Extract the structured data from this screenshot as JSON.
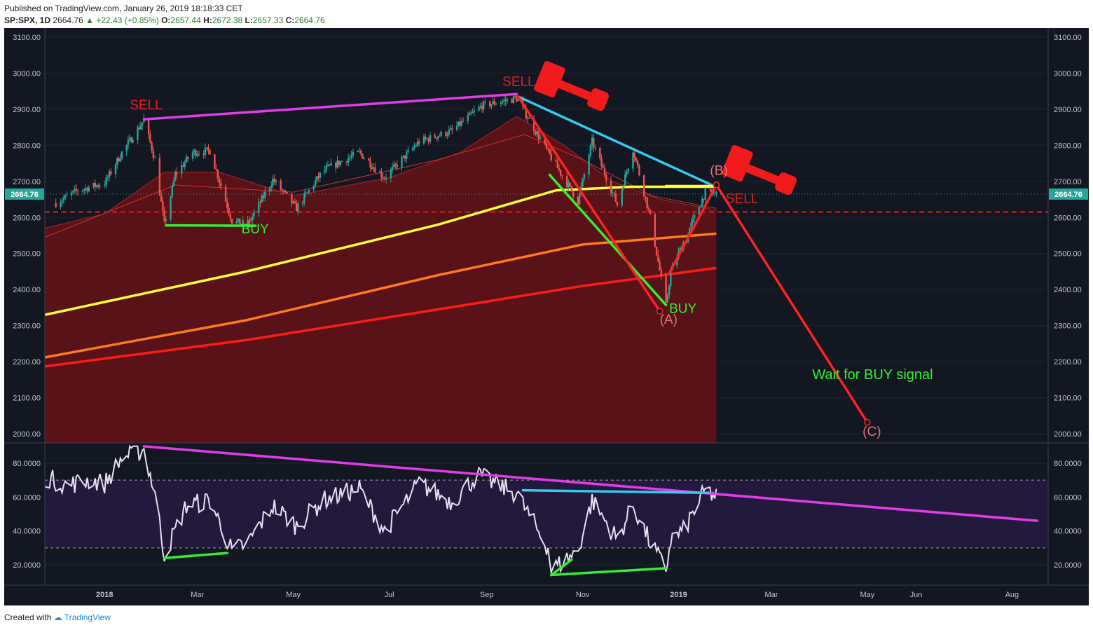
{
  "header": {
    "published": "Published on TradingView.com, January 26, 2019 18:18:33 CET",
    "symbol": "SP:SPX, 1D",
    "last": "2664.76",
    "change": "▲ +22.43 (+0.85%)",
    "o_label": "O:",
    "o": "2657.44",
    "h_label": "H:",
    "h": "2672.38",
    "l_label": "L:",
    "l": "2657.33",
    "c_label": "C:",
    "c": "2664.76"
  },
  "footer": {
    "created": "Created with",
    "brand": "TradingView"
  },
  "colors": {
    "background": "#131722",
    "ma_fill": "#5c1218",
    "ma200": "#ff1a1a",
    "ma_orange": "#ff7a1a",
    "ma_yellow": "#ffff33",
    "trend_magenta": "#e23ce8",
    "trend_green": "#33ee33",
    "trend_cyan": "#33ccee",
    "signal_red": "#ff2222",
    "candle_up": "#26a69a",
    "candle_down": "#ef5350",
    "rsi_line": "#e8e0f0",
    "rsi_band": "#23193d",
    "last_price_tag": "#26a69a"
  },
  "chart_data": [
    {
      "type": "candlestick",
      "panel": "price",
      "symbol": "SP:SPX",
      "interval": "1D",
      "last_price": 2664.76,
      "ylim": [
        1975,
        3125
      ],
      "yticks": [
        "2000.00",
        "2100.00",
        "2200.00",
        "2300.00",
        "2400.00",
        "2500.00",
        "2600.00",
        "2700.00",
        "2800.00",
        "2900.00",
        "3000.00",
        "3100.00"
      ],
      "xticks": [
        "2018",
        "Mar",
        "May",
        "Jul",
        "Sep",
        "Nov",
        "2019",
        "Mar",
        "May",
        "Jun",
        "Aug"
      ],
      "price_anchors": [
        {
          "date": "2017-12-01",
          "value": 2640
        },
        {
          "date": "2017-12-15",
          "value": 2675
        },
        {
          "date": "2018-01-01",
          "value": 2695
        },
        {
          "date": "2018-01-12",
          "value": 2780
        },
        {
          "date": "2018-01-26",
          "value": 2870
        },
        {
          "date": "2018-02-02",
          "value": 2760
        },
        {
          "date": "2018-02-08",
          "value": 2580
        },
        {
          "date": "2018-02-15",
          "value": 2720
        },
        {
          "date": "2018-02-26",
          "value": 2780
        },
        {
          "date": "2018-03-09",
          "value": 2785
        },
        {
          "date": "2018-03-23",
          "value": 2590
        },
        {
          "date": "2018-04-02",
          "value": 2580
        },
        {
          "date": "2018-04-18",
          "value": 2705
        },
        {
          "date": "2018-05-03",
          "value": 2625
        },
        {
          "date": "2018-05-20",
          "value": 2730
        },
        {
          "date": "2018-06-12",
          "value": 2780
        },
        {
          "date": "2018-06-28",
          "value": 2710
        },
        {
          "date": "2018-07-20",
          "value": 2810
        },
        {
          "date": "2018-08-10",
          "value": 2840
        },
        {
          "date": "2018-08-29",
          "value": 2910
        },
        {
          "date": "2018-09-20",
          "value": 2930
        },
        {
          "date": "2018-10-10",
          "value": 2780
        },
        {
          "date": "2018-10-29",
          "value": 2645
        },
        {
          "date": "2018-11-07",
          "value": 2810
        },
        {
          "date": "2018-11-23",
          "value": 2635
        },
        {
          "date": "2018-12-03",
          "value": 2790
        },
        {
          "date": "2018-12-14",
          "value": 2600
        },
        {
          "date": "2018-12-24",
          "value": 2355
        },
        {
          "date": "2018-12-27",
          "value": 2450
        },
        {
          "date": "2019-01-04",
          "value": 2530
        },
        {
          "date": "2019-01-18",
          "value": 2670
        },
        {
          "date": "2019-01-25",
          "value": 2665
        }
      ],
      "moving_averages": [
        {
          "color": "#ffff33",
          "points": [
            {
              "date": "2017-11-24",
              "value": 2330
            },
            {
              "date": "2018-04-01",
              "value": 2450
            },
            {
              "date": "2018-08-01",
              "value": 2580
            },
            {
              "date": "2018-10-15",
              "value": 2675
            },
            {
              "date": "2018-12-01",
              "value": 2685
            },
            {
              "date": "2019-01-25",
              "value": 2685
            }
          ]
        },
        {
          "color": "#ff7a1a",
          "points": [
            {
              "date": "2017-11-24",
              "value": 2212
            },
            {
              "date": "2018-04-01",
              "value": 2315
            },
            {
              "date": "2018-08-01",
              "value": 2440
            },
            {
              "date": "2018-11-01",
              "value": 2525
            },
            {
              "date": "2019-01-25",
              "value": 2555
            }
          ]
        },
        {
          "color": "#ff1a1a",
          "points": [
            {
              "date": "2017-11-24",
              "value": 2187
            },
            {
              "date": "2018-04-01",
              "value": 2260
            },
            {
              "date": "2018-08-01",
              "value": 2345
            },
            {
              "date": "2018-11-01",
              "value": 2410
            },
            {
              "date": "2019-01-25",
              "value": 2460
            }
          ]
        }
      ],
      "ma_envelope": [
        {
          "date": "2017-11-24",
          "value": 2570
        },
        {
          "date": "2018-01-01",
          "value": 2610
        },
        {
          "date": "2018-02-08",
          "value": 2725
        },
        {
          "date": "2018-03-15",
          "value": 2725
        },
        {
          "date": "2018-05-01",
          "value": 2660
        },
        {
          "date": "2018-07-01",
          "value": 2710
        },
        {
          "date": "2018-08-15",
          "value": 2780
        },
        {
          "date": "2018-09-20",
          "value": 2880
        },
        {
          "date": "2018-10-20",
          "value": 2800
        },
        {
          "date": "2018-11-20",
          "value": 2700
        },
        {
          "date": "2018-12-20",
          "value": 2650
        },
        {
          "date": "2019-01-25",
          "value": 2620
        }
      ],
      "ma_thin": [
        {
          "date": "2017-11-24",
          "value": 2545
        },
        {
          "date": "2018-02-15",
          "value": 2690
        },
        {
          "date": "2018-05-01",
          "value": 2670
        },
        {
          "date": "2018-08-01",
          "value": 2760
        },
        {
          "date": "2018-09-25",
          "value": 2830
        },
        {
          "date": "2018-11-01",
          "value": 2760
        },
        {
          "date": "2018-12-15",
          "value": 2660
        },
        {
          "date": "2019-01-25",
          "value": 2625
        }
      ],
      "horizontal_level": 2615,
      "trendlines": [
        {
          "color": "#e23ce8",
          "from": {
            "date": "2018-01-26",
            "value": 2872
          },
          "to": {
            "date": "2018-09-20",
            "value": 2942
          }
        },
        {
          "color": "#33ee33",
          "from": {
            "date": "2018-02-09",
            "value": 2578
          },
          "to": {
            "date": "2018-04-07",
            "value": 2577
          }
        },
        {
          "color": "#33ccee",
          "from": {
            "date": "2018-09-21",
            "value": 2935
          },
          "to": {
            "date": "2019-01-22",
            "value": 2690
          }
        },
        {
          "color": "#33ee33",
          "from": {
            "date": "2018-10-11",
            "value": 2718
          },
          "to": {
            "date": "2018-12-24",
            "value": 2357
          }
        },
        {
          "color": "#ff2222",
          "from": {
            "date": "2018-09-21",
            "value": 2935
          },
          "to": {
            "date": "2018-12-20",
            "value": 2340
          }
        },
        {
          "color": "#ff2222",
          "from": {
            "date": "2018-12-26",
            "value": 2445
          },
          "to": {
            "date": "2019-01-25",
            "value": 2690
          }
        },
        {
          "color": "#ff2222",
          "from": {
            "date": "2019-01-25",
            "value": 2690
          },
          "to": {
            "date": "2019-05-01",
            "value": 2032
          }
        },
        {
          "color": "#ffff33",
          "from": {
            "date": "2018-12-24",
            "value": 2687
          },
          "to": {
            "date": "2019-01-25",
            "value": 2687
          }
        }
      ],
      "annotations": [
        {
          "text": "SELL",
          "date": "2018-01-17",
          "value": 2900,
          "color": "#dd2222"
        },
        {
          "text": "BUY",
          "date": "2018-03-29",
          "value": 2556,
          "color": "#33ee33"
        },
        {
          "text": "SELL",
          "date": "2018-09-11",
          "value": 2965,
          "color": "#dd2222"
        },
        {
          "text": "BUY",
          "date": "2018-12-26",
          "value": 2335,
          "color": "#33ee33"
        },
        {
          "text": "(A)",
          "date": "2018-12-20",
          "value": 2305,
          "color": "#e57373"
        },
        {
          "text": "(B)",
          "date": "2019-01-21",
          "value": 2718,
          "color": "#e57373"
        },
        {
          "text": "SELL",
          "date": "2019-01-31",
          "value": 2640,
          "color": "#dd2222"
        },
        {
          "text": "(C)",
          "date": "2019-04-28",
          "value": 1994,
          "color": "#e57373"
        },
        {
          "text": "Wait for BUY signal",
          "date": "2019-03-27",
          "value": 2152,
          "color": "#33ee33"
        }
      ]
    },
    {
      "type": "line",
      "panel": "rsi",
      "ylim": [
        8,
        92
      ],
      "yticks": [
        "20.0000",
        "40.0000",
        "60.0000",
        "80.0000"
      ],
      "band": [
        30,
        70
      ],
      "series": [
        {
          "points": [
            {
              "date": "2017-11-24",
              "value": 72
            },
            {
              "date": "2017-12-08",
              "value": 67
            },
            {
              "date": "2017-12-22",
              "value": 70
            },
            {
              "date": "2018-01-01",
              "value": 68
            },
            {
              "date": "2018-01-12",
              "value": 83
            },
            {
              "date": "2018-01-26",
              "value": 88
            },
            {
              "date": "2018-02-02",
              "value": 62
            },
            {
              "date": "2018-02-08",
              "value": 26
            },
            {
              "date": "2018-02-22",
              "value": 55
            },
            {
              "date": "2018-03-09",
              "value": 58
            },
            {
              "date": "2018-03-23",
              "value": 28
            },
            {
              "date": "2018-04-02",
              "value": 33
            },
            {
              "date": "2018-04-18",
              "value": 55
            },
            {
              "date": "2018-05-03",
              "value": 43
            },
            {
              "date": "2018-05-20",
              "value": 58
            },
            {
              "date": "2018-06-12",
              "value": 65
            },
            {
              "date": "2018-06-28",
              "value": 40
            },
            {
              "date": "2018-07-20",
              "value": 68
            },
            {
              "date": "2018-08-10",
              "value": 57
            },
            {
              "date": "2018-08-26",
              "value": 73
            },
            {
              "date": "2018-09-20",
              "value": 62
            },
            {
              "date": "2018-10-10",
              "value": 30
            },
            {
              "date": "2018-10-12",
              "value": 17
            },
            {
              "date": "2018-10-29",
              "value": 28
            },
            {
              "date": "2018-11-07",
              "value": 58
            },
            {
              "date": "2018-11-23",
              "value": 35
            },
            {
              "date": "2018-12-03",
              "value": 55
            },
            {
              "date": "2018-12-14",
              "value": 33
            },
            {
              "date": "2018-12-24",
              "value": 17
            },
            {
              "date": "2018-12-27",
              "value": 35
            },
            {
              "date": "2019-01-04",
              "value": 40
            },
            {
              "date": "2019-01-18",
              "value": 64
            },
            {
              "date": "2019-01-25",
              "value": 60
            }
          ]
        }
      ],
      "trendlines": [
        {
          "color": "#e23ce8",
          "from": {
            "date": "2018-01-26",
            "value": 90
          },
          "to": {
            "date": "2019-08-17",
            "value": 46
          }
        },
        {
          "color": "#33ccee",
          "from": {
            "date": "2018-09-24",
            "value": 64
          },
          "to": {
            "date": "2019-01-20",
            "value": 62.5
          }
        },
        {
          "color": "#33ee33",
          "from": {
            "date": "2018-02-08",
            "value": 24
          },
          "to": {
            "date": "2018-03-20",
            "value": 27
          }
        },
        {
          "color": "#33ee33",
          "from": {
            "date": "2018-10-12",
            "value": 14
          },
          "to": {
            "date": "2018-12-24",
            "value": 18
          }
        },
        {
          "color": "#33ee33",
          "from": {
            "date": "2018-10-12",
            "value": 14
          },
          "to": {
            "date": "2018-10-25",
            "value": 23
          }
        }
      ]
    }
  ]
}
